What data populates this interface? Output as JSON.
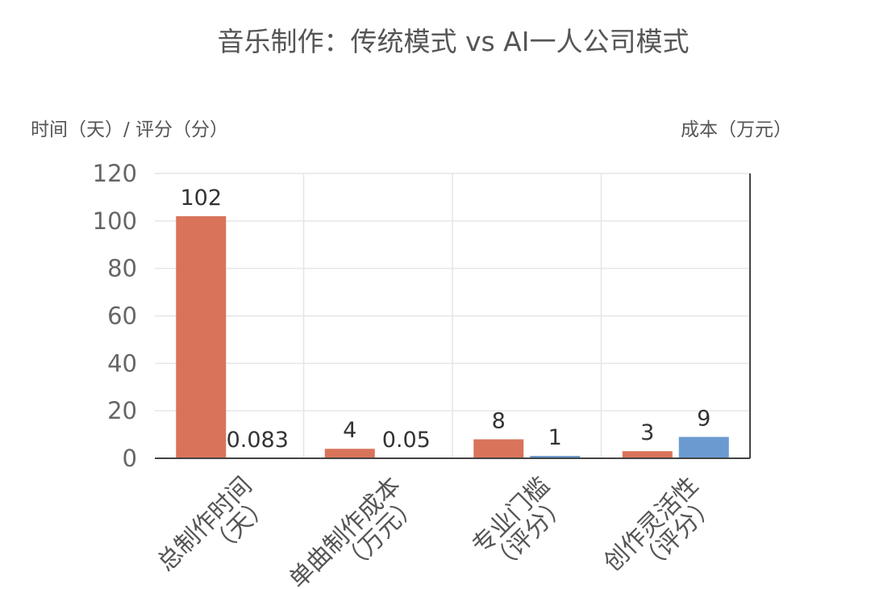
{
  "chart_data": {
    "type": "bar",
    "title": "音乐制作：传统模式 vs AI一人公司模式",
    "ylabel": "时间（天）/ 评分（分）",
    "y2label": "成本（万元）",
    "ylim": [
      0,
      120
    ],
    "yticks": [
      0,
      20,
      40,
      60,
      80,
      100,
      120
    ],
    "grid": true,
    "categories": [
      [
        "总制作时间",
        "（天）"
      ],
      [
        "单曲制作成本",
        "（万元）"
      ],
      [
        "专业门槛",
        "（评分）"
      ],
      [
        "创作灵活性",
        "（评分）"
      ]
    ],
    "series": [
      {
        "values": [
          102,
          4,
          8,
          3
        ],
        "labels": [
          "102",
          "4",
          "8",
          "3"
        ],
        "color": "#d9745a"
      },
      {
        "values": [
          0.083,
          0.05,
          1,
          9
        ],
        "labels": [
          "0.083",
          "0.05",
          "1",
          "9"
        ],
        "color": "#6a9ad0"
      }
    ]
  }
}
